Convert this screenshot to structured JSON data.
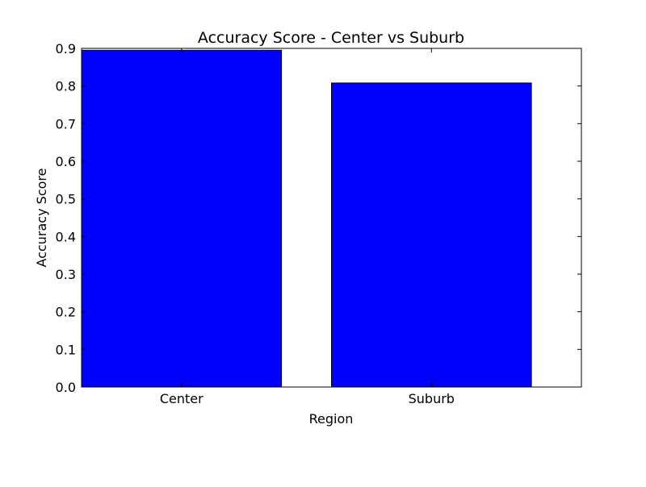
{
  "chart_data": {
    "type": "bar",
    "title": "Accuracy Score - Center vs Suburb",
    "xlabel": "Region",
    "ylabel": "Accuracy Score",
    "categories": [
      "Center",
      "Suburb"
    ],
    "values": [
      0.895,
      0.808
    ],
    "ylim": [
      0,
      0.9
    ],
    "yticks": [
      0.0,
      0.1,
      0.2,
      0.3,
      0.4,
      0.5,
      0.6,
      0.7,
      0.8,
      0.9
    ],
    "ytick_labels": [
      "0.0",
      "0.1",
      "0.2",
      "0.3",
      "0.4",
      "0.5",
      "0.6",
      "0.7",
      "0.8",
      "0.9"
    ],
    "grid": false,
    "legend": "none",
    "bar_color": "#0000ff",
    "edge_color": "#000000"
  }
}
